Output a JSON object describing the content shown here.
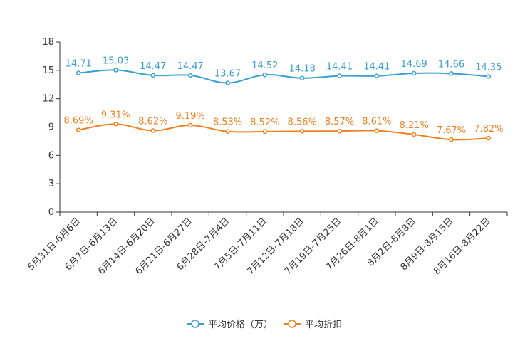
{
  "chart_data": {
    "type": "line",
    "title": "",
    "xlabel": "",
    "ylabel": "",
    "ylim": [
      0,
      18
    ],
    "yticks": [
      0,
      3,
      6,
      9,
      12,
      15,
      18
    ],
    "categories": [
      "5月31日-6月6日",
      "6月7日-6月13日",
      "6月14日-6月20日",
      "6月21日-6月27日",
      "6月28日-7月4日",
      "7月5日-7月11日",
      "7月12日-7月18日",
      "7月19日-7月25日",
      "7月26日-8月1日",
      "8月2日-8月8日",
      "8月9日-8月15日",
      "8月16日-8月22日"
    ],
    "series": [
      {
        "name": "平均价格（万）",
        "color": "#3a9fcf",
        "values": [
          14.71,
          15.03,
          14.47,
          14.47,
          13.67,
          14.52,
          14.18,
          14.41,
          14.41,
          14.69,
          14.66,
          14.35
        ],
        "labels": [
          "14.71",
          "15.03",
          "14.47",
          "14.47",
          "13.67",
          "14.52",
          "14.18",
          "14.41",
          "14.41",
          "14.69",
          "14.66",
          "14.35"
        ]
      },
      {
        "name": "平均折扣",
        "color": "#f07f1d",
        "values": [
          8.69,
          9.31,
          8.62,
          9.19,
          8.53,
          8.52,
          8.56,
          8.57,
          8.61,
          8.21,
          7.67,
          7.82
        ],
        "labels": [
          "8.69%",
          "9.31%",
          "8.62%",
          "9.19%",
          "8.53%",
          "8.52%",
          "8.56%",
          "8.57%",
          "8.61%",
          "8.21%",
          "7.67%",
          "7.82%"
        ]
      }
    ],
    "legend_position": "bottom-center",
    "grid": false
  }
}
